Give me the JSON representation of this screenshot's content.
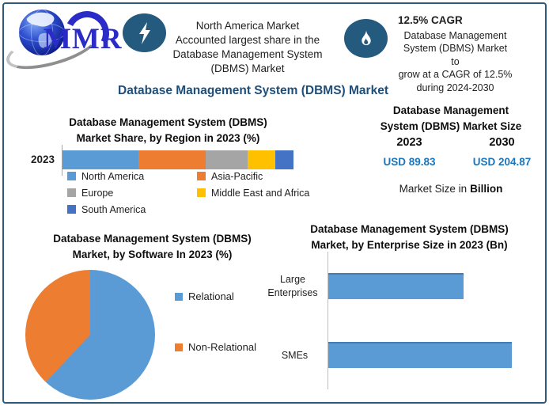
{
  "colors": {
    "accent_dark_blue": "#1F4E79",
    "value_blue": "#1B75BC",
    "badge_bg": "#235A7E",
    "frame_border": "#2E5B7A"
  },
  "logo": {
    "text": "MMR"
  },
  "header": {
    "highlight": {
      "lines": [
        "North America Market",
        "Accounted largest share in the",
        "Database Management System",
        "(DBMS) Market"
      ]
    },
    "cagr": {
      "headline": "12.5% CAGR",
      "lines": [
        "Database Management",
        "System (DBMS) Market to",
        "grow at a CAGR of 12.5%",
        "during 2024-2030"
      ]
    }
  },
  "main_title": "Database Management System (DBMS) Market",
  "market_size": {
    "title_lines": [
      "Database Management",
      "System (DBMS) Market Size"
    ],
    "columns": [
      {
        "year": "2023",
        "value": "USD 89.83"
      },
      {
        "year": "2030",
        "value": "USD 204.87"
      }
    ],
    "note_prefix": "Market Size in",
    "note_emphasis": "Billion"
  },
  "chart_data": [
    {
      "type": "bar",
      "subtype": "stacked-horizontal",
      "title": "Database Management System (DBMS) Market Share, by Region in 2023 (%)",
      "title_lines": [
        "Database Management System (DBMS)",
        "Market Share, by Region in 2023 (%)"
      ],
      "categories": [
        "2023"
      ],
      "series": [
        {
          "name": "North America",
          "values": [
            33
          ],
          "color": "#5B9BD5"
        },
        {
          "name": "Asia-Pacific",
          "values": [
            29
          ],
          "color": "#ED7D31"
        },
        {
          "name": "Europe",
          "values": [
            18
          ],
          "color": "#A5A5A5"
        },
        {
          "name": "Middle East and Africa",
          "values": [
            12
          ],
          "color": "#FFC000"
        },
        {
          "name": "South America",
          "values": [
            8
          ],
          "color": "#4472C4"
        }
      ],
      "unit": "%",
      "xlim": [
        0,
        100
      ],
      "legend_position": "bottom",
      "grid": false
    },
    {
      "type": "pie",
      "title": "Database Management System (DBMS) Market, by Software In 2023 (%)",
      "title_lines": [
        "Database Management System (DBMS)",
        "Market, by Software In 2023 (%)"
      ],
      "labels": [
        "Relational",
        "Non-Relational"
      ],
      "values": [
        62,
        38
      ],
      "colors": [
        "#5B9BD5",
        "#ED7D31"
      ],
      "unit": "%",
      "legend_position": "right"
    },
    {
      "type": "bar",
      "subtype": "horizontal",
      "title": "Database Management System (DBMS) Market, by Enterprise Size in 2023 (Bn)",
      "title_lines": [
        "Database Management System (DBMS)",
        "Market, by Enterprise Size in 2023 (Bn)"
      ],
      "categories": [
        "Large Enterprises",
        "SMEs"
      ],
      "values": [
        38,
        51.5
      ],
      "xlim": [
        0,
        60
      ],
      "color": "#5B9BD5",
      "unit": "Bn",
      "grid": false
    }
  ]
}
